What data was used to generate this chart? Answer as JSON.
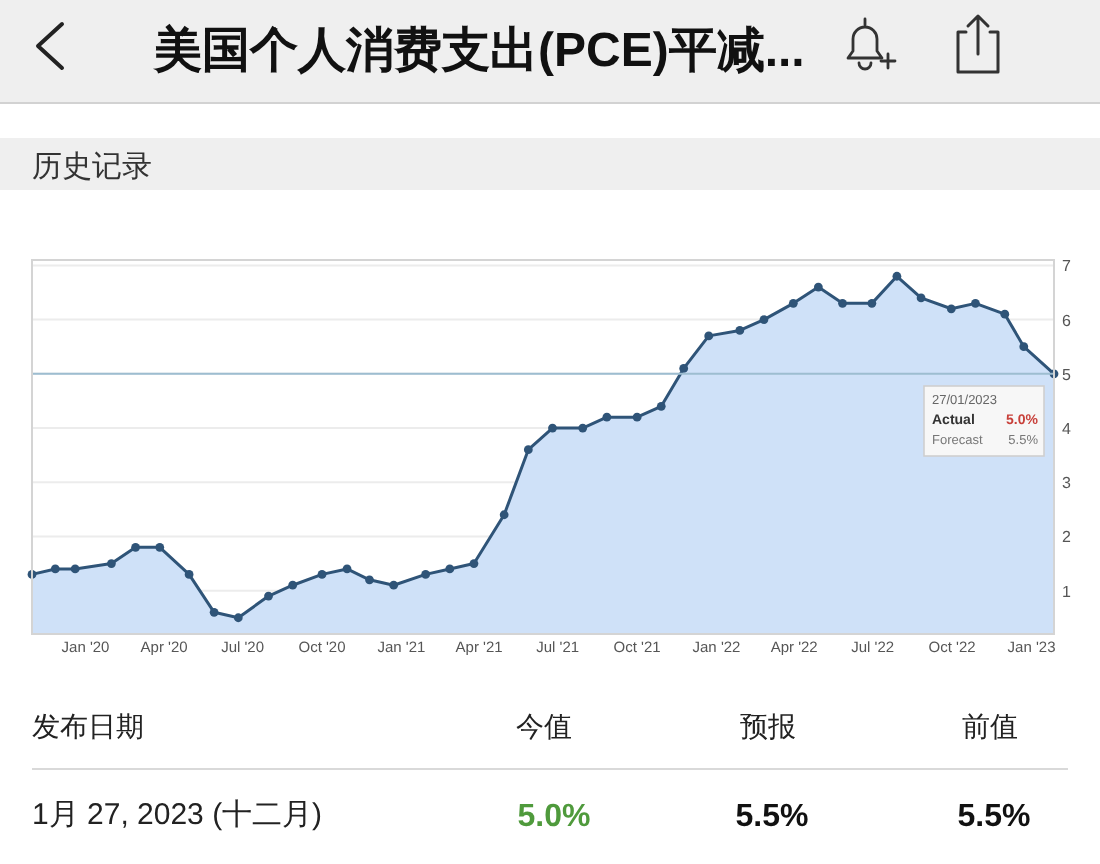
{
  "chart_data": {
    "type": "area",
    "title": "美国个人消费支出(PCE)平减...",
    "subtitle": "历史记录",
    "x": [
      "2019-10-31",
      "2019-11-27",
      "2019-12-20",
      "2020-01-31",
      "2020-02-28",
      "2020-03-27",
      "2020-04-30",
      "2020-05-29",
      "2020-06-26",
      "2020-07-31",
      "2020-08-28",
      "2020-10-01",
      "2020-10-30",
      "2020-11-25",
      "2020-12-23",
      "2021-01-29",
      "2021-02-26",
      "2021-03-26",
      "2021-04-30",
      "2021-05-28",
      "2021-06-25",
      "2021-07-30",
      "2021-08-27",
      "2021-10-01",
      "2021-10-29",
      "2021-11-24",
      "2021-12-23",
      "2022-01-28",
      "2022-02-25",
      "2022-03-31",
      "2022-04-29",
      "2022-05-27",
      "2022-06-30",
      "2022-07-29",
      "2022-08-26",
      "2022-09-30",
      "2022-10-28",
      "2022-12-01",
      "2022-12-23",
      "2023-01-27"
    ],
    "values": [
      1.3,
      1.4,
      1.4,
      1.5,
      1.8,
      1.8,
      1.3,
      0.6,
      0.5,
      0.9,
      1.1,
      1.3,
      1.4,
      1.2,
      1.1,
      1.3,
      1.4,
      1.5,
      2.4,
      3.6,
      4.0,
      4.0,
      4.2,
      4.2,
      4.4,
      5.1,
      5.7,
      5.8,
      6.0,
      6.3,
      6.6,
      6.3,
      6.3,
      6.8,
      6.4,
      6.2,
      6.3,
      6.1,
      5.5,
      5.0
    ],
    "color": "#2f5478",
    "marker": "circle",
    "line_style": "solid",
    "xlim": [
      "2019-10-31",
      "2023-01-27"
    ],
    "xticks": [
      {
        "value": "2020-01",
        "label": "Jan '20"
      },
      {
        "value": "2020-04",
        "label": "Apr '20"
      },
      {
        "value": "2020-07",
        "label": "Jul '20"
      },
      {
        "value": "2020-10",
        "label": "Oct '20"
      },
      {
        "value": "2021-01",
        "label": "Jan '21"
      },
      {
        "value": "2021-04",
        "label": "Apr '21"
      },
      {
        "value": "2021-07",
        "label": "Jul '21"
      },
      {
        "value": "2021-10",
        "label": "Oct '21"
      },
      {
        "value": "2022-01",
        "label": "Jan '22"
      },
      {
        "value": "2022-04",
        "label": "Apr '22"
      },
      {
        "value": "2022-07",
        "label": "Jul '22"
      },
      {
        "value": "2022-10",
        "label": "Oct '22"
      },
      {
        "value": "2023-01",
        "label": "Jan '23"
      }
    ],
    "ylim": [
      0.2,
      7.1
    ],
    "yticks": [
      1,
      2,
      3,
      4,
      5,
      6,
      7
    ],
    "grid": "y",
    "ref_lines": [
      {
        "axis": "y",
        "value": 5,
        "color": "#9dbdd0"
      }
    ],
    "annotations": [
      "27/01/2023",
      "Actual",
      "5.0%",
      "Forecast",
      "5.5%",
      "发布日期",
      "今值",
      "预报",
      "前值",
      "1月 27, 2023 (十二月)",
      "5.0%",
      "5.5%",
      "5.5%"
    ]
  }
}
